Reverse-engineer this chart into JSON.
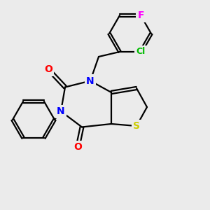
{
  "bg_color": "#ebebeb",
  "bond_color": "#000000",
  "bond_width": 1.6,
  "atom_colors": {
    "N": "#0000ff",
    "O": "#ff0000",
    "S": "#cccc00",
    "Cl": "#00bb00",
    "F": "#ff00ff",
    "C": "#000000"
  },
  "font_size": 9,
  "fig_size": [
    3.0,
    3.0
  ],
  "dpi": 100
}
